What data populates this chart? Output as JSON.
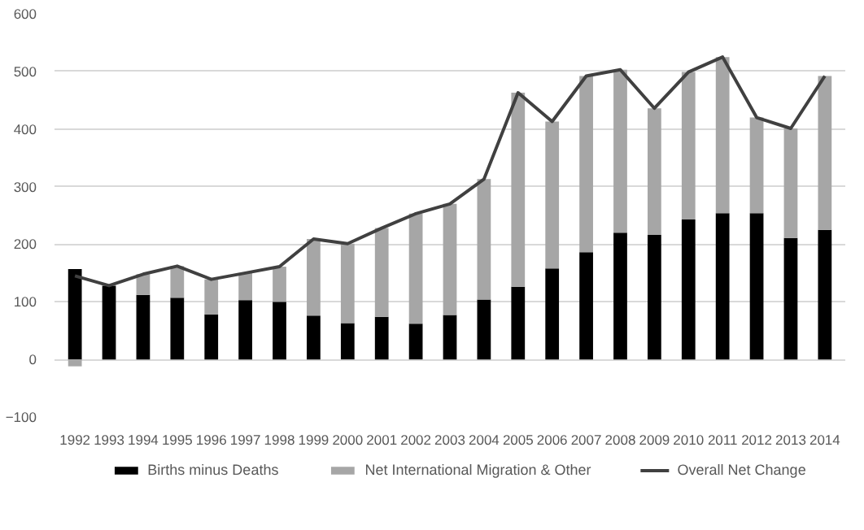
{
  "chart_data": {
    "type": "bar",
    "stacked": true,
    "categories": [
      "1992",
      "1993",
      "1994",
      "1995",
      "1996",
      "1997",
      "1998",
      "1999",
      "2000",
      "2001",
      "2002",
      "2003",
      "2004",
      "2005",
      "2006",
      "2007",
      "2008",
      "2009",
      "2010",
      "2011",
      "2012",
      "2013",
      "2014"
    ],
    "series": [
      {
        "name": "Births minus Deaths",
        "color": "#000000",
        "values": [
          157,
          128,
          112,
          107,
          78,
          103,
          100,
          76,
          63,
          74,
          62,
          77,
          104,
          126,
          158,
          186,
          220,
          216,
          243,
          254,
          254,
          211,
          225
        ]
      },
      {
        "name": "Net International Migration & Other",
        "color": "#a6a6a6",
        "values": [
          -12,
          0,
          36,
          55,
          61,
          47,
          61,
          133,
          138,
          154,
          191,
          193,
          209,
          337,
          255,
          306,
          283,
          220,
          256,
          271,
          166,
          190,
          267
        ]
      },
      {
        "name": "Overall Net Change",
        "type": "line",
        "color": "#404040",
        "values": [
          145,
          128,
          148,
          162,
          139,
          150,
          161,
          209,
          201,
          228,
          253,
          270,
          313,
          463,
          413,
          492,
          503,
          436,
          499,
          525,
          420,
          401,
          492
        ]
      }
    ],
    "ylim": [
      -100,
      600
    ],
    "yticks": [
      -100,
      0,
      100,
      200,
      300,
      400,
      500,
      600
    ],
    "grid": "y",
    "legend": "bottom"
  }
}
